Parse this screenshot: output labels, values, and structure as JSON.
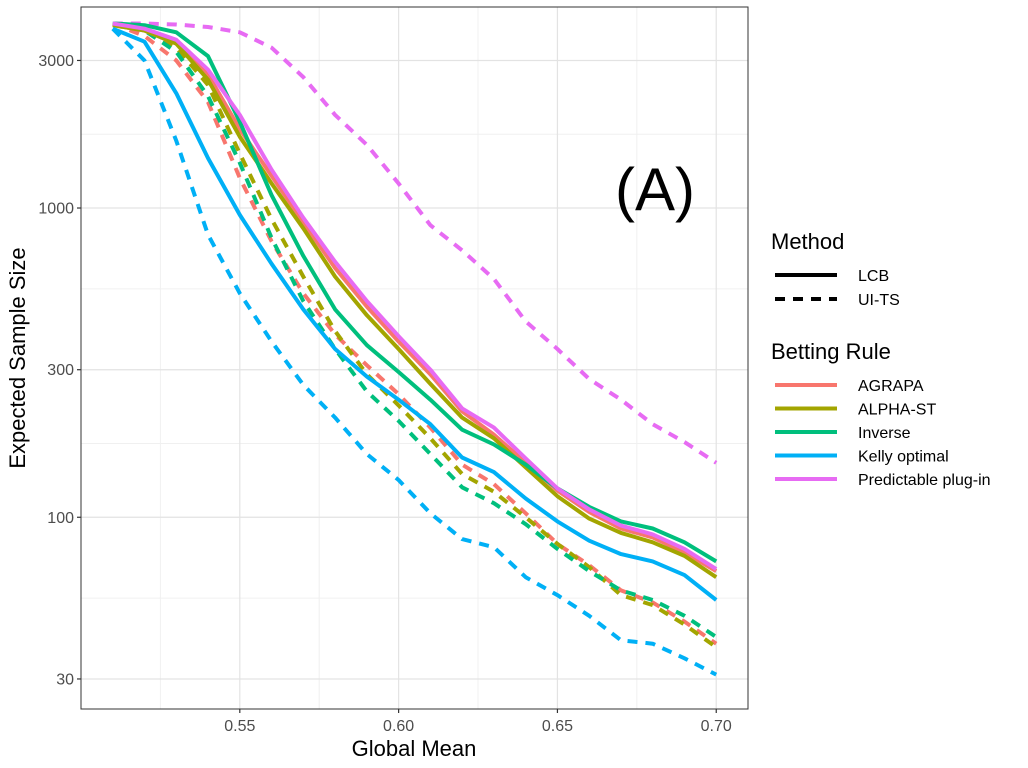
{
  "chart_data": {
    "type": "line",
    "title": "",
    "annotation": "(A)",
    "xlabel": "Global Mean",
    "ylabel": "Expected Sample Size",
    "xlim": [
      0.5,
      0.71
    ],
    "ylim_log10": [
      1.38,
      3.65
    ],
    "y_scale": "log10",
    "x_ticks": [
      0.55,
      0.6,
      0.65,
      0.7
    ],
    "x_tick_labels": [
      "0.55",
      "0.60",
      "0.65",
      "0.70"
    ],
    "y_ticks": [
      30,
      100,
      300,
      1000,
      3000
    ],
    "y_tick_labels": [
      "30",
      "100",
      "300",
      "1000",
      "3000"
    ],
    "y_minor_ticks": [
      54.77,
      173.2,
      547.7,
      1732
    ],
    "x_minor_ticks": [
      0.525,
      0.575,
      0.625,
      0.675
    ],
    "grid": true,
    "x": [
      0.51,
      0.52,
      0.53,
      0.54,
      0.55,
      0.56,
      0.57,
      0.58,
      0.59,
      0.6,
      0.61,
      0.62,
      0.63,
      0.64,
      0.65,
      0.66,
      0.67,
      0.68,
      0.69,
      0.7
    ],
    "legend": {
      "placement": "right",
      "method_title": "Method",
      "method_entries": [
        {
          "label": "LCB",
          "dash": "solid"
        },
        {
          "label": "UI-TS",
          "dash": "dashed"
        }
      ],
      "rule_title": "Betting Rule",
      "rule_entries": [
        {
          "label": "AGRAPA",
          "color": "#F8766D"
        },
        {
          "label": "ALPHA-ST",
          "color": "#A3A500"
        },
        {
          "label": "Inverse",
          "color": "#00BF7D"
        },
        {
          "label": "Kelly optimal",
          "color": "#00B0F6"
        },
        {
          "label": "Predictable plug-in",
          "color": "#E76BF3"
        }
      ]
    },
    "series": [
      {
        "name": "AGRAPA LCB",
        "rule": "AGRAPA",
        "method": "LCB",
        "color": "#F8766D",
        "values": [
          3900,
          3750,
          3400,
          2700,
          1800,
          1270,
          900,
          640,
          480,
          370,
          290,
          220,
          185,
          150,
          122,
          104,
          92,
          86,
          77,
          67
        ]
      },
      {
        "name": "ALPHA-ST LCB",
        "rule": "ALPHA-ST",
        "method": "LCB",
        "color": "#A3A500",
        "values": [
          3900,
          3750,
          3400,
          2600,
          1700,
          1200,
          860,
          600,
          450,
          350,
          270,
          210,
          180,
          145,
          117,
          99,
          89,
          83,
          75,
          64
        ]
      },
      {
        "name": "Inverse LCB",
        "rule": "Inverse",
        "method": "LCB",
        "color": "#00BF7D",
        "values": [
          3950,
          3900,
          3700,
          3100,
          1900,
          1100,
          700,
          470,
          360,
          295,
          240,
          192,
          172,
          148,
          124,
          108,
          97,
          92,
          83,
          72
        ]
      },
      {
        "name": "Kelly optimal LCB",
        "rule": "Kelly optimal",
        "method": "LCB",
        "color": "#00B0F6",
        "values": [
          3800,
          3450,
          2350,
          1450,
          950,
          660,
          470,
          350,
          285,
          240,
          200,
          156,
          140,
          115,
          97,
          84,
          76,
          72,
          65,
          54
        ]
      },
      {
        "name": "Predictable plug-in LCB",
        "rule": "Predictable plug-in",
        "method": "LCB",
        "color": "#E76BF3",
        "values": [
          3950,
          3800,
          3500,
          2800,
          2000,
          1330,
          930,
          670,
          500,
          385,
          300,
          225,
          195,
          155,
          124,
          106,
          94,
          88,
          79,
          68
        ]
      },
      {
        "name": "AGRAPA UI-TS",
        "rule": "AGRAPA",
        "method": "UI-TS",
        "color": "#F8766D",
        "values": [
          3950,
          3600,
          3000,
          2200,
          1250,
          780,
          530,
          390,
          310,
          250,
          195,
          148,
          128,
          103,
          82,
          70,
          58,
          53,
          46,
          39
        ]
      },
      {
        "name": "ALPHA-ST UI-TS",
        "rule": "ALPHA-ST",
        "method": "UI-TS",
        "color": "#A3A500",
        "values": [
          3950,
          3750,
          3300,
          2500,
          1500,
          920,
          600,
          400,
          290,
          230,
          180,
          138,
          121,
          100,
          82,
          69,
          56,
          52,
          45,
          38
        ]
      },
      {
        "name": "Inverse UI-TS",
        "rule": "Inverse",
        "method": "UI-TS",
        "color": "#00BF7D",
        "values": [
          3950,
          3750,
          3200,
          2300,
          1400,
          800,
          500,
          350,
          255,
          205,
          160,
          125,
          111,
          95,
          79,
          67,
          58,
          54,
          48,
          41
        ]
      },
      {
        "name": "Kelly optimal UI-TS",
        "rule": "Kelly optimal",
        "method": "UI-TS",
        "color": "#00B0F6",
        "values": [
          3800,
          3000,
          1650,
          820,
          530,
          370,
          268,
          210,
          160,
          132,
          103,
          85,
          80,
          64,
          56,
          48,
          40,
          39,
          35,
          31
        ]
      },
      {
        "name": "Predictable plug-in UI-TS",
        "rule": "Predictable plug-in",
        "method": "UI-TS",
        "color": "#E76BF3",
        "values": [
          3950,
          3950,
          3920,
          3850,
          3700,
          3300,
          2650,
          2000,
          1600,
          1200,
          880,
          730,
          590,
          430,
          350,
          280,
          240,
          200,
          175,
          150
        ]
      }
    ]
  }
}
